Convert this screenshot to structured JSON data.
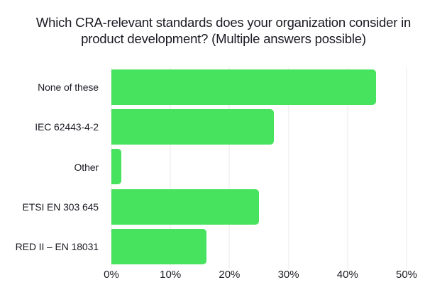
{
  "title": {
    "lines": [
      "Which CRA-relevant standards does your organization consider in",
      "product development? (Multiple answers possible)"
    ]
  },
  "colors": {
    "bar": "#47e25e",
    "text": "#1a1a23",
    "gridline": "#e8e8e8",
    "background": "#ffffff"
  },
  "chart_data": {
    "type": "bar",
    "orientation": "horizontal",
    "title": "Which CRA-relevant standards does your organization consider in product development? (Multiple answers possible)",
    "categories": [
      "None of these",
      "IEC 62443-4-2",
      "Other",
      "ETSI EN 303 645",
      "RED II – EN 18031"
    ],
    "values": [
      44.8,
      27.5,
      1.7,
      25.0,
      16.1
    ],
    "unit": "%",
    "xlabel": "",
    "ylabel": "",
    "xlim": [
      0,
      50
    ],
    "x_ticks": [
      "0%",
      "10%",
      "20%",
      "30%",
      "40%",
      "50%"
    ],
    "grid": true,
    "legend": false
  }
}
